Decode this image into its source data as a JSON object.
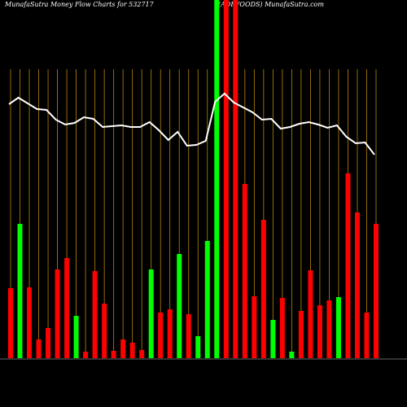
{
  "chart_data": {
    "type": "bar",
    "title": "MunafaSutra  Money Flow  Charts for 532717",
    "subtitle": "(ADFFOODS) MunafaSutra.com",
    "values": [
      86,
      165,
      87,
      23,
      37,
      109,
      123,
      52,
      8,
      107,
      67,
      9,
      23,
      19,
      10,
      109,
      56,
      60,
      128,
      54,
      27,
      144,
      440,
      440,
      440,
      214,
      76,
      170,
      47,
      74,
      8,
      58,
      108,
      65,
      71,
      75,
      227,
      179,
      56,
      165
    ],
    "colors": [
      "#ff0000",
      "#00ff00",
      "#ff0000",
      "#ff0000",
      "#ff0000",
      "#ff0000",
      "#ff0000",
      "#00ff00",
      "#ff0000",
      "#ff0000",
      "#ff0000",
      "#ff0000",
      "#ff0000",
      "#ff0000",
      "#ff0000",
      "#00ff00",
      "#ff0000",
      "#ff0000",
      "#00ff00",
      "#ff0000",
      "#00ff00",
      "#00ff00",
      "#00ff00",
      "#ff0000",
      "#ff0000",
      "#ff0000",
      "#ff0000",
      "#ff0000",
      "#00ff00",
      "#ff0000",
      "#00ff00",
      "#ff0000",
      "#ff0000",
      "#ff0000",
      "#ff0000",
      "#00ff00",
      "#ff0000",
      "#ff0000",
      "#ff0000",
      "#ff0000"
    ],
    "line": {
      "color": "#ffffff",
      "values": [
        312,
        320,
        313,
        306,
        305,
        293,
        287,
        289,
        296,
        294,
        284,
        285,
        286,
        284,
        284,
        290,
        280,
        268,
        278,
        261,
        262,
        267,
        315,
        325,
        314,
        308,
        302,
        293,
        294,
        282,
        284,
        288,
        290,
        287,
        283,
        286,
        272,
        264,
        265,
        250
      ]
    },
    "ylim": [
      0,
      440
    ],
    "grid_color": "#b8860b"
  }
}
